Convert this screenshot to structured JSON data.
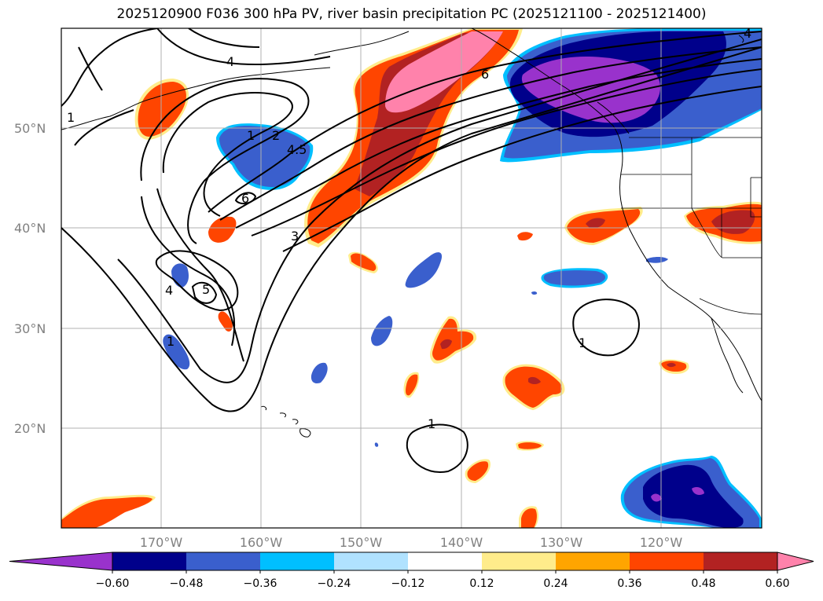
{
  "title": "2025120900 F036 300 hPa PV, river basin precipitation PC (2025121100 - 2025121400)",
  "map": {
    "projection": "plate-carree",
    "lon_range": [
      -180,
      -110
    ],
    "lat_range": [
      10,
      60
    ],
    "grid": true,
    "lat_labels": [
      "50°N",
      "40°N",
      "30°N",
      "20°N"
    ],
    "lon_labels": [
      "170°W",
      "160°W",
      "150°W",
      "140°W",
      "130°W",
      "120°W"
    ],
    "contour_labels": [
      "1",
      "4",
      "1",
      "2",
      "4.5",
      "6",
      "3",
      "4",
      "5",
      "1",
      "6",
      "1",
      "1",
      "4"
    ]
  },
  "colorbar": {
    "colors": [
      "#9932cc",
      "#00008b",
      "#3a5fcd",
      "#00bfff",
      "#b0e2ff",
      "#ffffff",
      "#ffec8b",
      "#ffa500",
      "#ff4500",
      "#b22222",
      "#ff82ab"
    ],
    "tick_labels": [
      "−0.60",
      "−0.48",
      "−0.36",
      "−0.24",
      "−0.12",
      "0.12",
      "0.24",
      "0.36",
      "0.48",
      "0.60"
    ],
    "extend": "both"
  }
}
